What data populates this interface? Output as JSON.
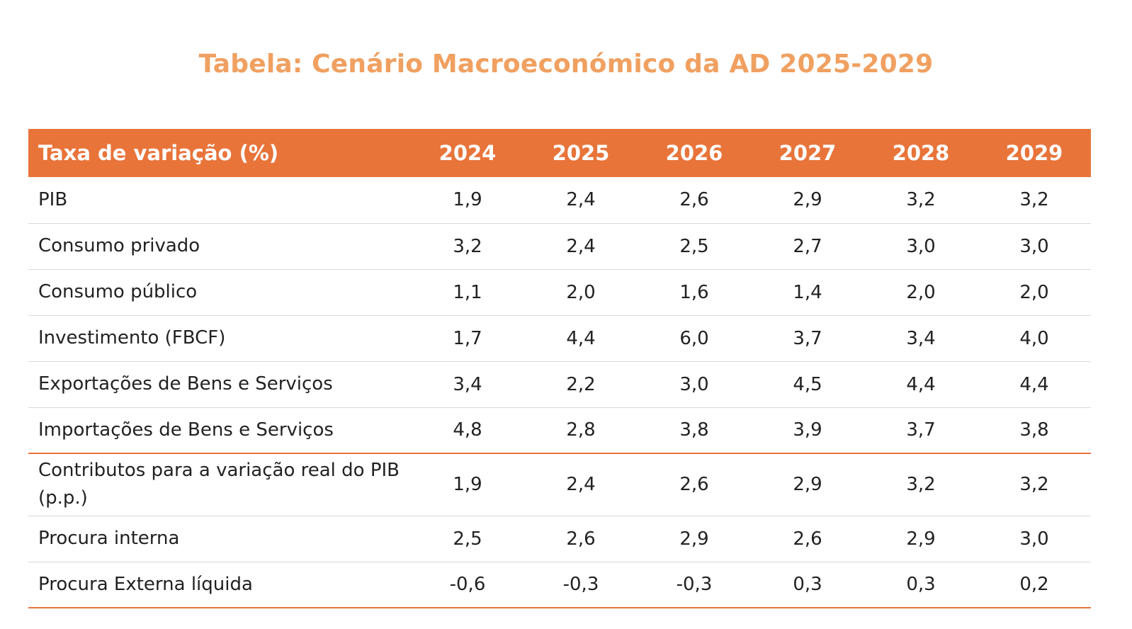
{
  "title": "Tabela: Cenário Macroeconómico da AD 2025-2029",
  "accent_color": "#E8743A",
  "title_color": "#F0A060",
  "table": {
    "header_label": "Taxa de variação (%)",
    "years": [
      "2024",
      "2025",
      "2026",
      "2027",
      "2028",
      "2029"
    ],
    "rows": [
      {
        "label": "PIB",
        "values": [
          "1,9",
          "2,4",
          "2,6",
          "2,9",
          "3,2",
          "3,2"
        ]
      },
      {
        "label": "Consumo privado",
        "values": [
          "3,2",
          "2,4",
          "2,5",
          "2,7",
          "3,0",
          "3,0"
        ]
      },
      {
        "label": "Consumo público",
        "values": [
          "1,1",
          "2,0",
          "1,6",
          "1,4",
          "2,0",
          "2,0"
        ]
      },
      {
        "label": "Investimento (FBCF)",
        "values": [
          "1,7",
          "4,4",
          "6,0",
          "3,7",
          "3,4",
          "4,0"
        ]
      },
      {
        "label": "Exportações de Bens e Serviços",
        "values": [
          "3,4",
          "2,2",
          "3,0",
          "4,5",
          "4,4",
          "4,4"
        ]
      },
      {
        "label": "Importações de Bens e Serviços",
        "values": [
          "4,8",
          "2,8",
          "3,8",
          "3,9",
          "3,7",
          "3,8"
        ]
      },
      {
        "label": "Contributos para a variação real do PIB  (p.p.)",
        "values": [
          "1,9",
          "2,4",
          "2,6",
          "2,9",
          "3,2",
          "3,2"
        ]
      },
      {
        "label": "Procura interna",
        "values": [
          "2,5",
          "2,6",
          "2,9",
          "2,6",
          "2,9",
          "3,0"
        ]
      },
      {
        "label": "Procura Externa líquida",
        "values": [
          "-0,6",
          "-0,3",
          "-0,3",
          "0,3",
          "0,3",
          "0,2"
        ]
      }
    ]
  }
}
